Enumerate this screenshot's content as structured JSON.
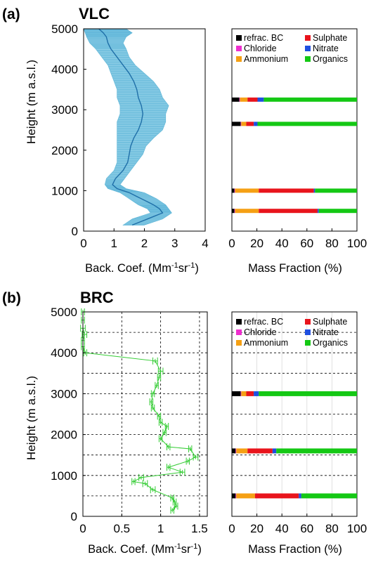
{
  "panels": {
    "a": {
      "letter": "(a)",
      "site": "VLC",
      "ylabel": "Height (m a.s.l.)",
      "backscatter_xlabel_pre": "Back. Coef. (Mm",
      "backscatter_xlabel_mid": "sr",
      "backscatter_xlabel_post": ")",
      "unit_exponent": "-1",
      "mass_xlabel": "Mass Fraction (%)"
    },
    "b": {
      "letter": "(b)",
      "site": "BRC",
      "ylabel": "Height (m a.s.l.)",
      "backscatter_xlabel_pre": "Back. Coef. (Mm",
      "backscatter_xlabel_mid": "sr",
      "backscatter_xlabel_post": ")",
      "unit_exponent": "-1",
      "mass_xlabel": "Mass Fraction (%)"
    }
  },
  "legend": [
    {
      "label": "refrac. BC",
      "color": "#000000"
    },
    {
      "label": "Sulphate",
      "color": "#e8141c"
    },
    {
      "label": "Chloride",
      "color": "#ee2fce"
    },
    {
      "label": "Nitrate",
      "color": "#1f4fe0"
    },
    {
      "label": "Ammonium",
      "color": "#f5a014"
    },
    {
      "label": "Organics",
      "color": "#14c814"
    }
  ],
  "chart_data": [
    {
      "id": "vlc-backscatter",
      "type": "line",
      "xlabel": "Back. Coef. (Mm-1sr-1)",
      "ylabel": "Height (m a.s.l.)",
      "xlim": [
        0,
        4
      ],
      "ylim": [
        0,
        5000
      ],
      "xticks": [
        0,
        1,
        2,
        3,
        4
      ],
      "yticks": [
        0,
        1000,
        2000,
        3000,
        4000,
        5000
      ],
      "grid": false,
      "line_color": "#1f6fa8",
      "band_color": "#7ec8e3",
      "series": [
        {
          "y": [
            150,
            300,
            450,
            550,
            650,
            800,
            950,
            1050,
            1150,
            1300,
            1500,
            1700,
            1900,
            2100,
            2300,
            2500,
            2700,
            2900,
            3100,
            3300,
            3500,
            3700,
            3900,
            4100,
            4300,
            4500,
            4650,
            4800,
            4900,
            5000
          ],
          "x": [
            1.6,
            2.1,
            2.6,
            2.5,
            2.3,
            1.9,
            1.5,
            1.1,
            0.95,
            1.05,
            1.3,
            1.45,
            1.5,
            1.55,
            1.65,
            1.8,
            1.9,
            1.95,
            1.9,
            1.8,
            1.75,
            1.65,
            1.5,
            1.3,
            1.1,
            0.9,
            0.8,
            0.75,
            0.65,
            0.5
          ],
          "lower": [
            1.3,
            1.6,
            2.2,
            2.1,
            1.8,
            1.5,
            1.2,
            0.8,
            0.7,
            0.75,
            1.0,
            1.1,
            1.1,
            1.1,
            1.1,
            1.1,
            1.1,
            1.2,
            1.2,
            1.1,
            1.1,
            1.0,
            0.9,
            0.8,
            0.6,
            0.4,
            0.2,
            0.1,
            0.05,
            0.0
          ],
          "upper": [
            2.0,
            2.6,
            2.9,
            2.8,
            2.7,
            2.4,
            2.0,
            1.4,
            1.2,
            1.35,
            1.55,
            1.75,
            1.95,
            2.05,
            2.3,
            2.6,
            2.7,
            2.7,
            2.8,
            2.6,
            2.5,
            2.3,
            2.0,
            1.7,
            1.5,
            1.4,
            1.3,
            1.4,
            1.6,
            1.4
          ]
        }
      ]
    },
    {
      "id": "vlc-mass-fraction",
      "type": "bar",
      "orientation": "horizontal-stacked",
      "xlabel": "Mass Fraction (%)",
      "xlim": [
        0,
        100
      ],
      "xticks": [
        0,
        20,
        40,
        60,
        80,
        100
      ],
      "ylim": [
        0,
        5000
      ],
      "grid": false,
      "bars": [
        {
          "height": 500,
          "values": {
            "refrac. BC": 2,
            "Chloride": 0.5,
            "Ammonium": 19,
            "Sulphate": 47,
            "Nitrate": 1,
            "Organics": 30.5
          }
        },
        {
          "height": 1000,
          "values": {
            "refrac. BC": 2,
            "Chloride": 0.5,
            "Ammonium": 19,
            "Sulphate": 44,
            "Nitrate": 1,
            "Organics": 33.5
          }
        },
        {
          "height": 2650,
          "values": {
            "refrac. BC": 7,
            "Chloride": 0.5,
            "Ammonium": 4,
            "Sulphate": 6,
            "Nitrate": 3,
            "Organics": 79.5
          }
        },
        {
          "height": 3250,
          "values": {
            "refrac. BC": 6,
            "Chloride": 0.5,
            "Ammonium": 6,
            "Sulphate": 8,
            "Nitrate": 5,
            "Organics": 74.5
          }
        }
      ]
    },
    {
      "id": "brc-backscatter",
      "type": "line",
      "xlabel": "Back. Coef. (Mm-1sr-1)",
      "ylabel": "Height (m a.s.l.)",
      "xlim": [
        0,
        1.6
      ],
      "ylim": [
        0,
        5000
      ],
      "xticks": [
        0,
        0.5,
        1,
        1.5
      ],
      "yticks": [
        0,
        1000,
        2000,
        3000,
        4000,
        5000
      ],
      "grid": true,
      "line_color": "#33cc33",
      "series": [
        {
          "x": [
            1.15,
            1.2,
            1.18,
            1.15,
            0.9,
            0.8,
            0.65,
            0.75,
            1.28,
            1.1,
            1.35,
            1.45,
            1.38,
            1.1,
            1.0,
            1.05,
            1.08,
            1.0,
            0.98,
            0.9,
            0.88,
            0.9,
            0.95,
            0.98,
            1.0,
            0.93,
            0.03,
            0.0,
            0.0,
            0.02,
            0.0,
            0.0,
            0.0
          ],
          "y": [
            150,
            250,
            350,
            450,
            650,
            800,
            850,
            950,
            1080,
            1200,
            1350,
            1450,
            1650,
            1700,
            1900,
            2050,
            2200,
            2300,
            2450,
            2650,
            2800,
            3000,
            3200,
            3400,
            3550,
            3800,
            4000,
            4150,
            4300,
            4450,
            4600,
            4800,
            5000
          ],
          "xerr": [
            0.02,
            0.02,
            0.02,
            0.02,
            0.03,
            0.03,
            0.02,
            0.03,
            0.03,
            0.02,
            0.02,
            0.03,
            0.02,
            0.02,
            0.02,
            0.02,
            0.02,
            0.02,
            0.02,
            0.02,
            0.02,
            0.02,
            0.02,
            0.02,
            0.03,
            0.03,
            0.02,
            0.02,
            0.02,
            0.03,
            0.03,
            0.02,
            0.02
          ]
        }
      ]
    },
    {
      "id": "brc-mass-fraction",
      "type": "bar",
      "orientation": "horizontal-stacked",
      "xlabel": "Mass Fraction (%)",
      "xlim": [
        0,
        100
      ],
      "xticks": [
        0,
        20,
        40,
        60,
        80,
        100
      ],
      "ylim": [
        0,
        5000
      ],
      "grid": true,
      "bars": [
        {
          "height": 500,
          "values": {
            "refrac. BC": 3,
            "Chloride": 0.5,
            "Ammonium": 15,
            "Sulphate": 35,
            "Nitrate": 2,
            "Organics": 44.5
          }
        },
        {
          "height": 1600,
          "values": {
            "refrac. BC": 3,
            "Chloride": 0.5,
            "Ammonium": 9,
            "Sulphate": 20,
            "Nitrate": 3,
            "Organics": 64.5
          }
        },
        {
          "height": 3000,
          "values": {
            "refrac. BC": 7,
            "Chloride": 0.5,
            "Ammonium": 4,
            "Sulphate": 6,
            "Nitrate": 4,
            "Organics": 78.5
          }
        }
      ]
    }
  ]
}
